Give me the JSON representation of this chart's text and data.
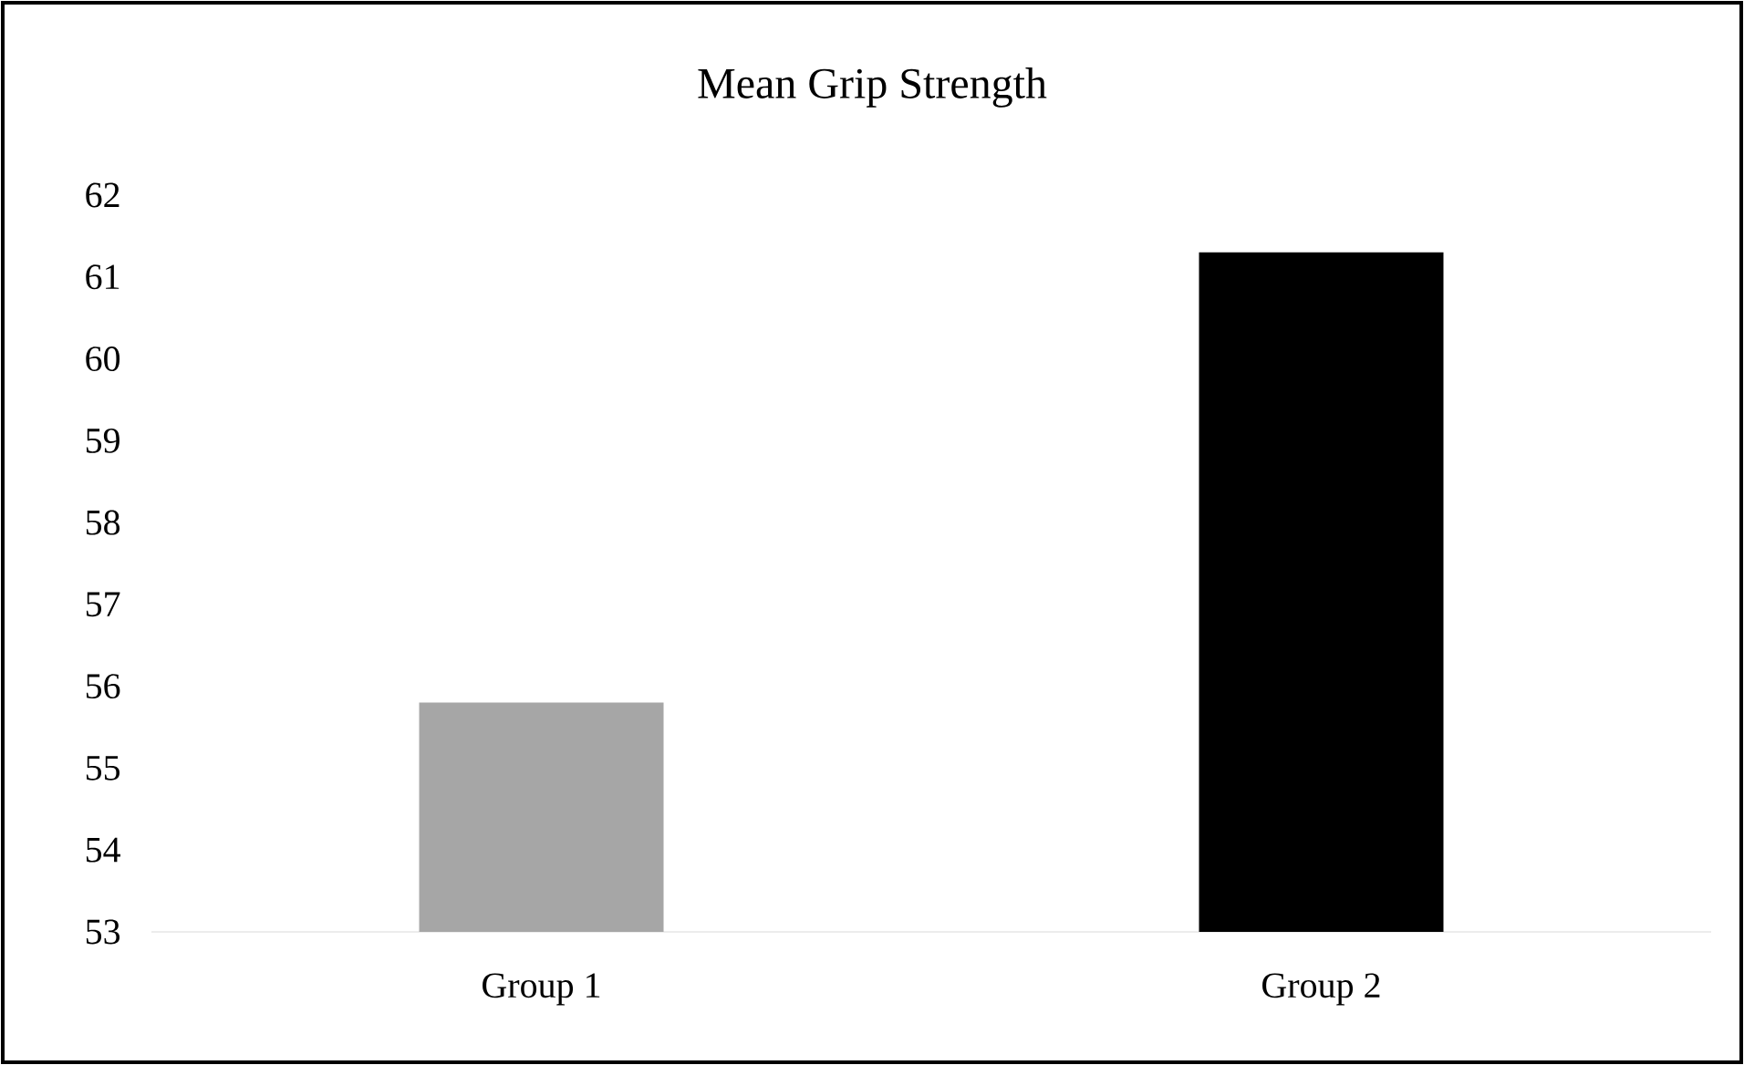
{
  "chart_data": {
    "type": "bar",
    "title": "Mean Grip Strength",
    "categories": [
      "Group 1",
      "Group 2"
    ],
    "values": [
      55.8,
      61.3
    ],
    "colors": [
      "#a6a6a6",
      "#000000"
    ],
    "ylim": [
      53,
      62
    ],
    "yticks": [
      53,
      54,
      55,
      56,
      57,
      58,
      59,
      60,
      61,
      62
    ],
    "grid": false
  }
}
